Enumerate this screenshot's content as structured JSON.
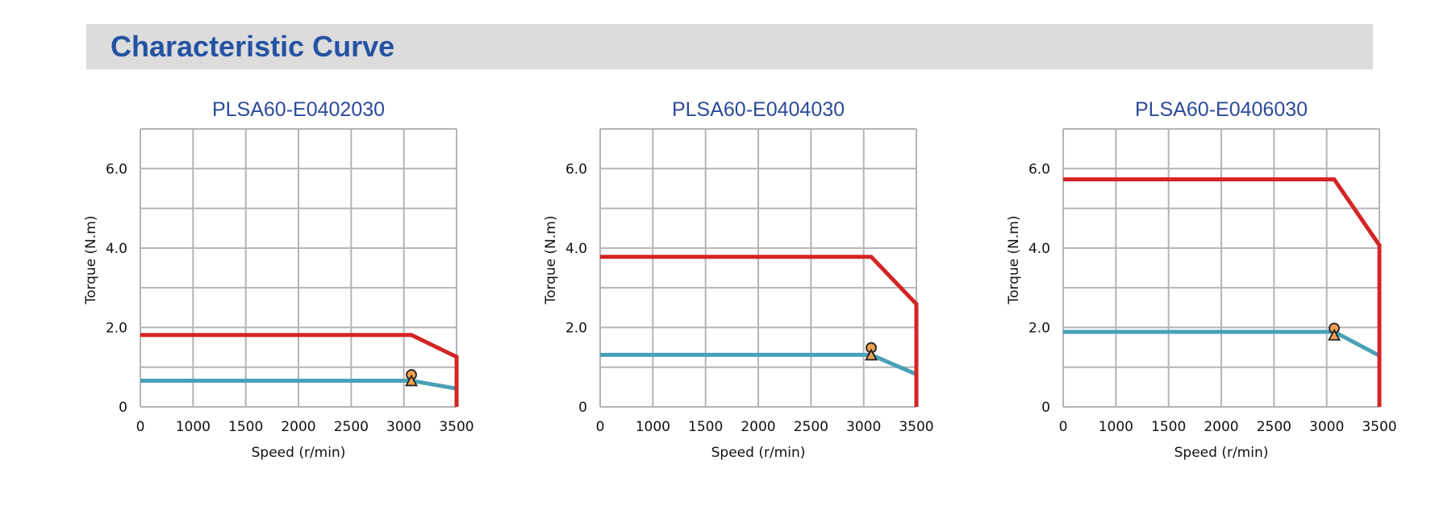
{
  "header": {
    "title": "Characteristic Curve"
  },
  "colors": {
    "header_bg": "#dcdcdc",
    "title": "#2553a3",
    "grid": "#b4b4b4",
    "peak_torque_curve": "#d42424",
    "rated_torque_curve": "#4aa0b7",
    "marker_fill": "#f0a050",
    "marker_stroke": "#222222"
  },
  "chart_data": [
    {
      "type": "line",
      "title": "PLSA60-E0402030",
      "xlabel": "Speed (r/min)",
      "ylabel": "Torque (N.m)",
      "xlim": [
        0,
        3500
      ],
      "ylim": [
        0,
        7
      ],
      "x_ticks": [
        "0",
        "1000",
        "1500",
        "2000",
        "2500",
        "3000",
        "3500"
      ],
      "y_ticks": [
        "0",
        "2.0",
        "4.0",
        "6.0"
      ],
      "grid": true,
      "series": [
        {
          "color": "#d42424",
          "points": [
            [
              0,
              1.81
            ],
            [
              3000,
              1.81
            ],
            [
              3500,
              1.26
            ],
            [
              3500,
              0
            ]
          ]
        },
        {
          "color": "#4aa0b7",
          "points": [
            [
              0,
              0.66
            ],
            [
              3000,
              0.66
            ],
            [
              3500,
              0.46
            ]
          ]
        }
      ],
      "markers": [
        {
          "shape": "circle",
          "x": 3000,
          "y": 0.81
        },
        {
          "shape": "triangle",
          "x": 3000,
          "y": 0.64
        }
      ]
    },
    {
      "type": "line",
      "title": "PLSA60-E0404030",
      "xlabel": "Speed (r/min)",
      "ylabel": "Torque (N.m)",
      "xlim": [
        0,
        3500
      ],
      "ylim": [
        0,
        7
      ],
      "x_ticks": [
        "0",
        "1000",
        "1500",
        "2000",
        "2500",
        "3000",
        "3500"
      ],
      "y_ticks": [
        "0",
        "2.0",
        "4.0",
        "6.0"
      ],
      "grid": true,
      "series": [
        {
          "color": "#d42424",
          "points": [
            [
              0,
              3.78
            ],
            [
              3000,
              3.78
            ],
            [
              3500,
              2.59
            ],
            [
              3500,
              0
            ]
          ]
        },
        {
          "color": "#4aa0b7",
          "points": [
            [
              0,
              1.31
            ],
            [
              3000,
              1.31
            ],
            [
              3500,
              0.82
            ]
          ]
        }
      ],
      "markers": [
        {
          "shape": "circle",
          "x": 3000,
          "y": 1.49
        },
        {
          "shape": "triangle",
          "x": 3000,
          "y": 1.29
        }
      ]
    },
    {
      "type": "line",
      "title": "PLSA60-E0406030",
      "xlabel": "Speed (r/min)",
      "ylabel": "Torque (N.m)",
      "xlim": [
        0,
        3500
      ],
      "ylim": [
        0,
        7
      ],
      "x_ticks": [
        "0",
        "1000",
        "1500",
        "2000",
        "2500",
        "3000",
        "3500"
      ],
      "y_ticks": [
        "0",
        "2.0",
        "4.0",
        "6.0"
      ],
      "grid": true,
      "series": [
        {
          "color": "#d42424",
          "points": [
            [
              0,
              5.73
            ],
            [
              3000,
              5.73
            ],
            [
              3500,
              4.07
            ],
            [
              3500,
              0
            ]
          ]
        },
        {
          "color": "#4aa0b7",
          "points": [
            [
              0,
              1.89
            ],
            [
              3000,
              1.89
            ],
            [
              3500,
              1.29
            ]
          ]
        }
      ],
      "markers": [
        {
          "shape": "circle",
          "x": 3000,
          "y": 1.98
        },
        {
          "shape": "triangle",
          "x": 3000,
          "y": 1.79
        }
      ]
    }
  ]
}
